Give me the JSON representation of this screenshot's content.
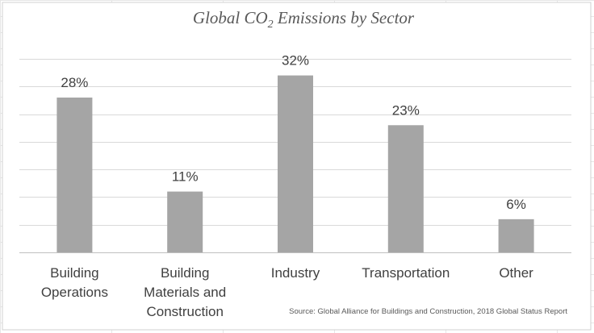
{
  "chart_data": {
    "type": "bar",
    "title_prefix": "Global CO",
    "title_subscript": "2",
    "title_suffix": " Emissions by Sector",
    "title": "Global CO2 Emissions by Sector",
    "categories": [
      [
        "Building",
        "Operations"
      ],
      [
        "Building",
        "Materials and",
        "Construction"
      ],
      [
        "Industry"
      ],
      [
        "Transportation"
      ],
      [
        "Other"
      ]
    ],
    "values": [
      28,
      11,
      32,
      23,
      6
    ],
    "data_labels": [
      "28%",
      "11%",
      "32%",
      "23%",
      "6%"
    ],
    "xlabel": "",
    "ylabel": "",
    "ylim": [
      0,
      35
    ],
    "gridlines": 7,
    "bar_color": "#a5a5a5",
    "source": "Source: Global Alliance for Buildings and Construction, 2018 Global Status Report"
  }
}
